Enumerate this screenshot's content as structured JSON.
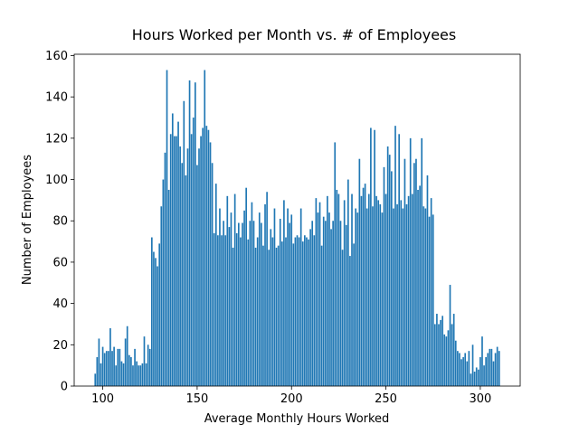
{
  "chart_data": {
    "type": "bar",
    "title": "Hours Worked per Month vs. # of Employees",
    "xlabel": "Average Monthly Hours Worked",
    "ylabel": "Number of Employees",
    "color": "#1f77b4",
    "bar_width": 0.8,
    "x": [
      96,
      97,
      98,
      99,
      100,
      101,
      102,
      103,
      104,
      105,
      106,
      107,
      108,
      109,
      110,
      111,
      112,
      113,
      114,
      115,
      116,
      117,
      118,
      119,
      120,
      121,
      122,
      123,
      124,
      125,
      126,
      127,
      128,
      129,
      130,
      131,
      132,
      133,
      134,
      135,
      136,
      137,
      138,
      139,
      140,
      141,
      142,
      143,
      144,
      145,
      146,
      147,
      148,
      149,
      150,
      151,
      152,
      153,
      154,
      155,
      156,
      157,
      158,
      159,
      160,
      161,
      162,
      163,
      164,
      165,
      166,
      167,
      168,
      169,
      170,
      171,
      172,
      173,
      174,
      175,
      176,
      177,
      178,
      179,
      180,
      181,
      182,
      183,
      184,
      185,
      186,
      187,
      188,
      189,
      190,
      191,
      192,
      193,
      194,
      195,
      196,
      197,
      198,
      199,
      200,
      201,
      202,
      203,
      204,
      205,
      206,
      207,
      208,
      209,
      210,
      211,
      212,
      213,
      214,
      215,
      216,
      217,
      218,
      219,
      220,
      221,
      222,
      223,
      224,
      225,
      226,
      227,
      228,
      229,
      230,
      231,
      232,
      233,
      234,
      235,
      236,
      237,
      238,
      239,
      240,
      241,
      242,
      243,
      244,
      245,
      246,
      247,
      248,
      249,
      250,
      251,
      252,
      253,
      254,
      255,
      256,
      257,
      258,
      259,
      260,
      261,
      262,
      263,
      264,
      265,
      266,
      267,
      268,
      269,
      270,
      271,
      272,
      273,
      274,
      275,
      276,
      277,
      278,
      279,
      280,
      281,
      282,
      283,
      284,
      285,
      286,
      287,
      288,
      289,
      290,
      291,
      292,
      293,
      294,
      295,
      296,
      297,
      298,
      299,
      300,
      301,
      302,
      303,
      304,
      305,
      306,
      307,
      308,
      309,
      310
    ],
    "values": [
      6,
      14,
      23,
      11,
      19,
      16,
      17,
      17,
      28,
      17,
      19,
      10,
      18,
      18,
      12,
      11,
      23,
      29,
      15,
      14,
      10,
      18,
      12,
      10,
      10,
      11,
      24,
      11,
      20,
      18,
      72,
      65,
      62,
      58,
      69,
      87,
      100,
      113,
      153,
      95,
      122,
      132,
      121,
      121,
      128,
      116,
      108,
      138,
      102,
      115,
      148,
      122,
      130,
      147,
      107,
      115,
      121,
      125,
      153,
      126,
      124,
      118,
      108,
      74,
      98,
      73,
      86,
      73,
      80,
      73,
      92,
      77,
      84,
      67,
      93,
      74,
      79,
      72,
      79,
      85,
      96,
      71,
      80,
      89,
      80,
      67,
      72,
      84,
      79,
      68,
      88,
      94,
      66,
      76,
      72,
      86,
      67,
      68,
      81,
      70,
      90,
      72,
      86,
      79,
      83,
      69,
      72,
      73,
      72,
      86,
      70,
      73,
      72,
      71,
      76,
      80,
      73,
      91,
      84,
      89,
      68,
      82,
      80,
      92,
      84,
      76,
      80,
      118,
      95,
      93,
      80,
      66,
      90,
      78,
      100,
      63,
      93,
      69,
      86,
      84,
      110,
      92,
      96,
      98,
      86,
      93,
      125,
      87,
      124,
      92,
      90,
      88,
      84,
      106,
      93,
      116,
      112,
      104,
      86,
      126,
      88,
      122,
      90,
      86,
      110,
      88,
      92,
      120,
      93,
      108,
      110,
      95,
      97,
      120,
      87,
      86,
      102,
      82,
      91,
      83,
      30,
      35,
      30,
      32,
      34,
      25,
      24,
      27,
      49,
      30,
      35,
      22,
      17,
      16,
      13,
      14,
      16,
      12,
      17,
      6,
      20,
      7,
      9,
      8,
      14,
      24,
      10,
      14,
      16,
      18,
      18,
      12,
      16,
      19,
      17
    ],
    "xlim": [
      84.86,
      321.14
    ],
    "xticks": [
      100,
      150,
      200,
      250,
      300
    ],
    "ylim": [
      0,
      160.65
    ],
    "yticks": [
      0,
      20,
      40,
      60,
      80,
      100,
      120,
      140,
      160
    ]
  }
}
